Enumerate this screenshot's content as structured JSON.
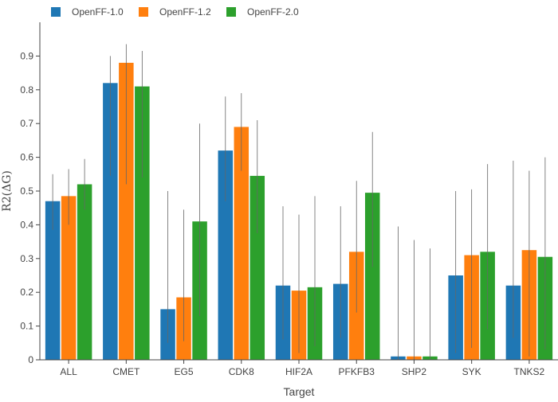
{
  "chart_data": {
    "type": "bar",
    "xlabel": "Target",
    "ylabel": "R2(ΔG)",
    "ylim": [
      0,
      1.0
    ],
    "yticks": [
      0,
      0.1,
      0.2,
      0.3,
      0.4,
      0.5,
      0.6,
      0.7,
      0.8,
      0.9
    ],
    "ytick_labels": [
      "0",
      "0.1",
      "0.2",
      "0.3",
      "0.4",
      "0.5",
      "0.6",
      "0.7",
      "0.8",
      "0.9"
    ],
    "grid": false,
    "legend_position": "top-left",
    "categories": [
      "ALL",
      "CMET",
      "EG5",
      "CDK8",
      "HIF2A",
      "PFKFB3",
      "SHP2",
      "SYK",
      "TNKS2"
    ],
    "series": [
      {
        "name": "OpenFF-1.0",
        "color": "#1f77b4",
        "values": [
          0.47,
          0.82,
          0.15,
          0.62,
          0.22,
          0.225,
          0.01,
          0.25,
          0.22
        ],
        "err_low": [
          0.385,
          0.545,
          0.05,
          0.47,
          0.06,
          0.065,
          0.0,
          0.02,
          0.065
        ],
        "err_high": [
          0.55,
          0.9,
          0.5,
          0.78,
          0.455,
          0.455,
          0.395,
          0.5,
          0.59
        ]
      },
      {
        "name": "OpenFF-1.2",
        "color": "#ff7f0e",
        "values": [
          0.485,
          0.88,
          0.185,
          0.69,
          0.205,
          0.32,
          0.01,
          0.31,
          0.325
        ],
        "err_low": [
          0.4,
          0.52,
          0.055,
          0.56,
          0.02,
          0.14,
          0.0,
          0.035,
          0.01
        ],
        "err_high": [
          0.565,
          0.935,
          0.445,
          0.79,
          0.43,
          0.53,
          0.355,
          0.505,
          0.56
        ]
      },
      {
        "name": "OpenFF-2.0",
        "color": "#2ca02c",
        "values": [
          0.52,
          0.81,
          0.41,
          0.545,
          0.215,
          0.495,
          0.01,
          0.32,
          0.305
        ],
        "err_low": [
          0.445,
          0.54,
          0.13,
          0.375,
          0.04,
          0.275,
          0.0,
          0.09,
          0.03
        ],
        "err_high": [
          0.595,
          0.915,
          0.7,
          0.71,
          0.485,
          0.675,
          0.33,
          0.58,
          0.6
        ]
      }
    ]
  }
}
